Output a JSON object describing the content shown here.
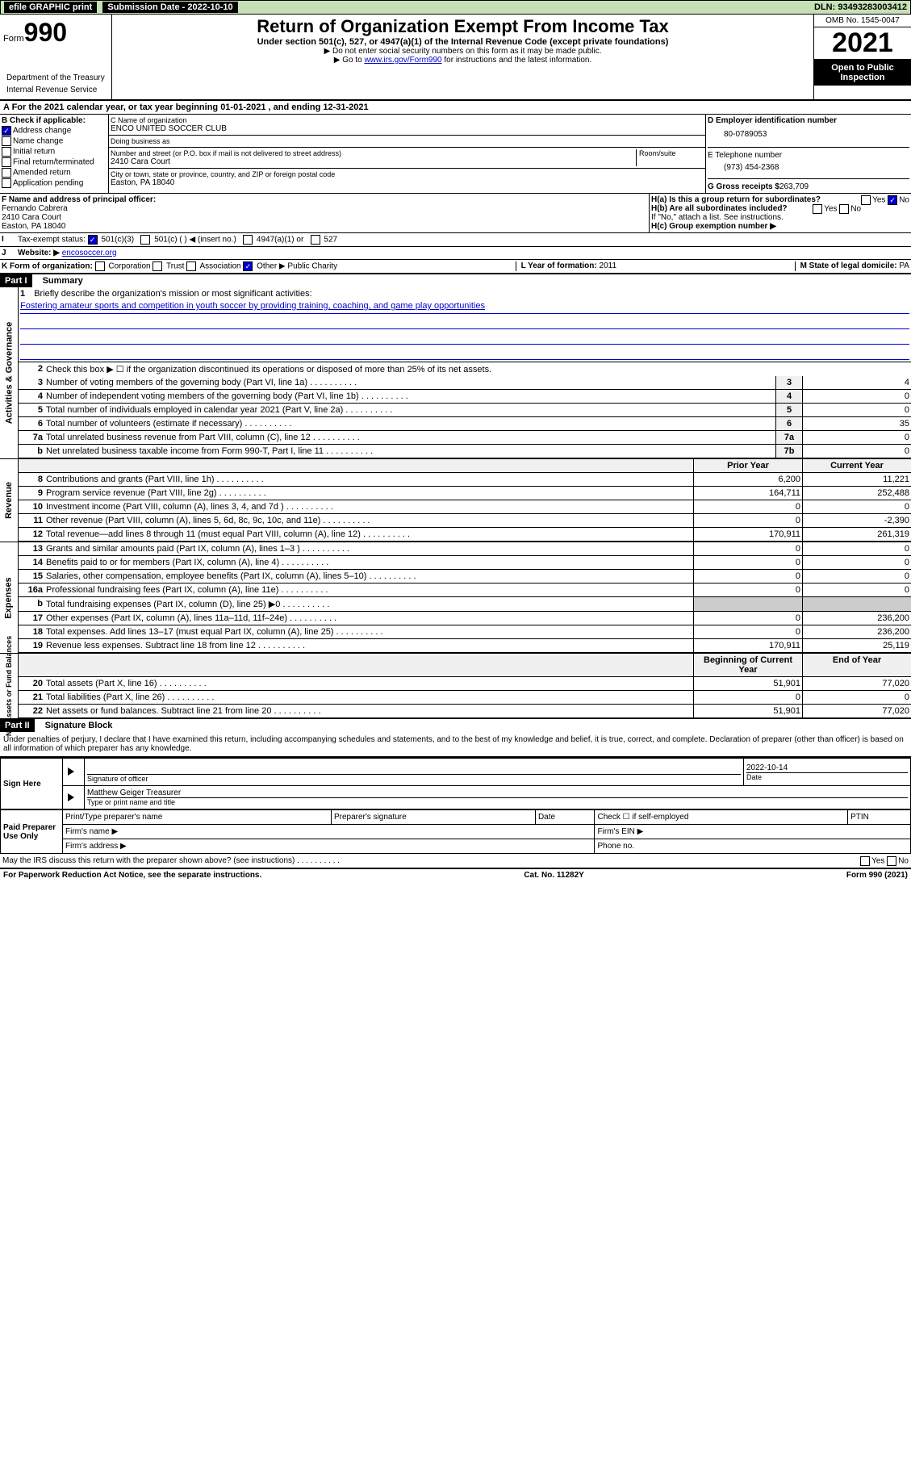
{
  "topbar": {
    "efile": "efile GRAPHIC print",
    "subdate_label": "Submission Date - 2022-10-10",
    "dln": "DLN: 93493283003412"
  },
  "header": {
    "form_pre": "Form",
    "form_num": "990",
    "title": "Return of Organization Exempt From Income Tax",
    "sub1": "Under section 501(c), 527, or 4947(a)(1) of the Internal Revenue Code (except private foundations)",
    "sub2": "▶ Do not enter social security numbers on this form as it may be made public.",
    "sub3a": "▶ Go to ",
    "sub3link": "www.irs.gov/Form990",
    "sub3b": " for instructions and the latest information.",
    "omb": "OMB No. 1545-0047",
    "year": "2021",
    "open": "Open to Public Inspection",
    "dept": "Department of the Treasury",
    "irs": "Internal Revenue Service"
  },
  "yearline": {
    "a": "A For the 2021 calendar year, or tax year beginning 01-01-2021   , and ending 12-31-2021"
  },
  "boxB": {
    "label": "B Check if applicable:",
    "items": [
      "Address change",
      "Name change",
      "Initial return",
      "Final return/terminated",
      "Amended return",
      "Application pending"
    ],
    "checked_idx": 0
  },
  "boxC": {
    "name_label": "C Name of organization",
    "name": "ENCO UNITED SOCCER CLUB",
    "dba_label": "Doing business as",
    "dba": "",
    "street_label": "Number and street (or P.O. box if mail is not delivered to street address)",
    "room_label": "Room/suite",
    "street": "2410 Cara Court",
    "city_label": "City or town, state or province, country, and ZIP or foreign postal code",
    "city": "Easton, PA   18040"
  },
  "boxD": {
    "label": "D Employer identification number",
    "ein": "80-0789053"
  },
  "boxE": {
    "label": "E Telephone number",
    "tel": "(973) 454-2368"
  },
  "boxG": {
    "label": "G Gross receipts $",
    "amt": "263,709"
  },
  "boxF": {
    "label": "F Name and address of principal officer:",
    "name": "Fernando Cabrera",
    "addr1": "2410 Cara Court",
    "addr2": "Easton, PA   18040"
  },
  "boxH": {
    "a": "H(a)  Is this a group return for subordinates?",
    "a_no": "No",
    "b": "H(b)  Are all subordinates included?",
    "b_note": "If \"No,\" attach a list. See instructions.",
    "c": "H(c)  Group exemption number ▶"
  },
  "I": {
    "label": "Tax-exempt status:",
    "c3": "501(c)(3)",
    "c": "501(c) (  ) ◀ (insert no.)",
    "a1": "4947(a)(1) or",
    "s527": "527"
  },
  "J": {
    "label": "Website: ▶",
    "val": "encosoccer.org"
  },
  "K": {
    "label": "K Form of organization:",
    "opts": [
      "Corporation",
      "Trust",
      "Association",
      "Other ▶"
    ],
    "other": "Public Charity"
  },
  "L": {
    "label": "L Year of formation:",
    "val": "2011"
  },
  "M": {
    "label": "M State of legal domicile:",
    "val": "PA"
  },
  "partI": {
    "title": "Part I",
    "sub": "Summary"
  },
  "mission": {
    "num": "1",
    "label": "Briefly describe the organization's mission or most significant activities:",
    "text": "Fostering amateur sports and competition in youth soccer by providing training, coaching, and game play opportunities"
  },
  "l2": {
    "num": "2",
    "txt": "Check this box ▶ ☐  if the organization discontinued its operations or disposed of more than 25% of its net assets."
  },
  "gov": [
    {
      "num": "3",
      "txt": "Number of voting members of the governing body (Part VI, line 1a)",
      "cell": "3",
      "val": "4"
    },
    {
      "num": "4",
      "txt": "Number of independent voting members of the governing body (Part VI, line 1b)",
      "cell": "4",
      "val": "0"
    },
    {
      "num": "5",
      "txt": "Total number of individuals employed in calendar year 2021 (Part V, line 2a)",
      "cell": "5",
      "val": "0"
    },
    {
      "num": "6",
      "txt": "Total number of volunteers (estimate if necessary)",
      "cell": "6",
      "val": "35"
    },
    {
      "num": "7a",
      "txt": "Total unrelated business revenue from Part VIII, column (C), line 12",
      "cell": "7a",
      "val": "0"
    },
    {
      "num": "b",
      "txt": "Net unrelated business taxable income from Form 990-T, Part I, line 11",
      "cell": "7b",
      "val": "0"
    }
  ],
  "rev_hdr": {
    "prior": "Prior Year",
    "curr": "Current Year"
  },
  "rev": [
    {
      "num": "8",
      "txt": "Contributions and grants (Part VIII, line 1h)",
      "p": "6,200",
      "c": "11,221"
    },
    {
      "num": "9",
      "txt": "Program service revenue (Part VIII, line 2g)",
      "p": "164,711",
      "c": "252,488"
    },
    {
      "num": "10",
      "txt": "Investment income (Part VIII, column (A), lines 3, 4, and 7d )",
      "p": "0",
      "c": "0"
    },
    {
      "num": "11",
      "txt": "Other revenue (Part VIII, column (A), lines 5, 6d, 8c, 9c, 10c, and 11e)",
      "p": "0",
      "c": "-2,390"
    },
    {
      "num": "12",
      "txt": "Total revenue—add lines 8 through 11 (must equal Part VIII, column (A), line 12)",
      "p": "170,911",
      "c": "261,319"
    }
  ],
  "exp": [
    {
      "num": "13",
      "txt": "Grants and similar amounts paid (Part IX, column (A), lines 1–3 )",
      "p": "0",
      "c": "0"
    },
    {
      "num": "14",
      "txt": "Benefits paid to or for members (Part IX, column (A), line 4)",
      "p": "0",
      "c": "0"
    },
    {
      "num": "15",
      "txt": "Salaries, other compensation, employee benefits (Part IX, column (A), lines 5–10)",
      "p": "0",
      "c": "0"
    },
    {
      "num": "16a",
      "txt": "Professional fundraising fees (Part IX, column (A), line 11e)",
      "p": "0",
      "c": "0"
    },
    {
      "num": "b",
      "txt": "Total fundraising expenses (Part IX, column (D), line 25) ▶0",
      "p": "",
      "c": "",
      "shaded": true
    },
    {
      "num": "17",
      "txt": "Other expenses (Part IX, column (A), lines 11a–11d, 11f–24e)",
      "p": "0",
      "c": "236,200"
    },
    {
      "num": "18",
      "txt": "Total expenses. Add lines 13–17 (must equal Part IX, column (A), line 25)",
      "p": "0",
      "c": "236,200"
    },
    {
      "num": "19",
      "txt": "Revenue less expenses. Subtract line 18 from line 12",
      "p": "170,911",
      "c": "25,119"
    }
  ],
  "na_hdr": {
    "beg": "Beginning of Current Year",
    "end": "End of Year"
  },
  "na": [
    {
      "num": "20",
      "txt": "Total assets (Part X, line 16)",
      "p": "51,901",
      "c": "77,020"
    },
    {
      "num": "21",
      "txt": "Total liabilities (Part X, line 26)",
      "p": "0",
      "c": "0"
    },
    {
      "num": "22",
      "txt": "Net assets or fund balances. Subtract line 21 from line 20",
      "p": "51,901",
      "c": "77,020"
    }
  ],
  "partII": {
    "title": "Part II",
    "sub": "Signature Block"
  },
  "penalties": "Under penalties of perjury, I declare that I have examined this return, including accompanying schedules and statements, and to the best of my knowledge and belief, it is true, correct, and complete. Declaration of preparer (other than officer) is based on all information of which preparer has any knowledge.",
  "sign": {
    "here": "Sign Here",
    "sig_label": "Signature of officer",
    "date_label": "Date",
    "date": "2022-10-14",
    "name": "Matthew Geiger Treasurer",
    "name_label": "Type or print name and title"
  },
  "prep": {
    "title": "Paid Preparer Use Only",
    "cols": [
      "Print/Type preparer's name",
      "Preparer's signature",
      "Date"
    ],
    "check": "Check ☐ if self-employed",
    "ptin": "PTIN",
    "firm": "Firm's name  ▶",
    "ein": "Firm's EIN ▶",
    "addr": "Firm's address ▶",
    "phone": "Phone no."
  },
  "discuss": "May the IRS discuss this return with the preparer shown above? (see instructions)",
  "footer": {
    "pra": "For Paperwork Reduction Act Notice, see the separate instructions.",
    "cat": "Cat. No. 11282Y",
    "form": "Form 990 (2021)"
  },
  "verts": {
    "ag": "Activities & Governance",
    "rev": "Revenue",
    "exp": "Expenses",
    "na": "Net Assets or\nFund Balances"
  }
}
